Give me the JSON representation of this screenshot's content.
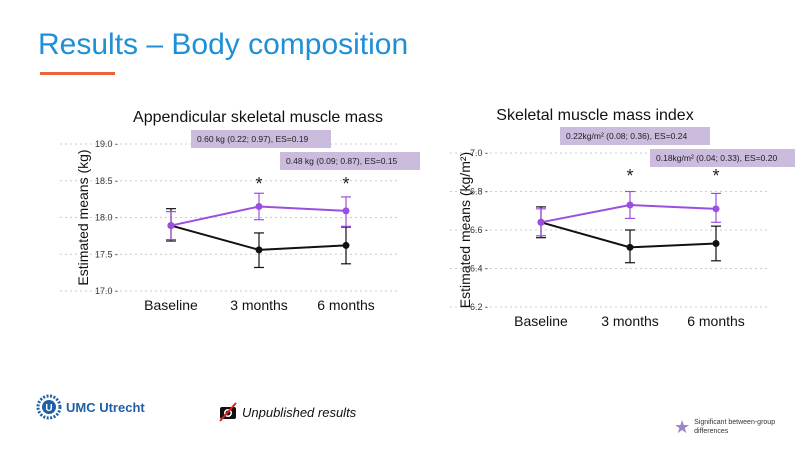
{
  "slide": {
    "title": "Results – Body composition",
    "accent": "#e8643a",
    "title_color": "#1f8fd6"
  },
  "footer": {
    "logo_text": "UMC Utrecht",
    "unpublished": "Unpublished results",
    "legend_text": "Significant between-group differences",
    "legend_icon": "star-icon"
  },
  "colors": {
    "intervention": "#9b4fe0",
    "control": "#111111",
    "box": "#cbbbdd"
  },
  "chart_data": [
    {
      "type": "line",
      "title": "Appendicular skeletal muscle mass",
      "ylabel": "Estimated means (kg)",
      "xlabel": "",
      "categories": [
        "Baseline",
        "3 months",
        "6 months"
      ],
      "ylim": [
        17.0,
        19.0
      ],
      "yticks": [
        "17.0",
        "17.5",
        "18.0",
        "18.5",
        "19.0"
      ],
      "grid": true,
      "series": [
        {
          "color": "#9b4fe0",
          "values": [
            17.89,
            18.15,
            18.09
          ],
          "lower": [
            17.7,
            17.97,
            17.88
          ],
          "upper": [
            18.08,
            18.33,
            18.28
          ]
        },
        {
          "color": "#111111",
          "values": [
            17.89,
            17.56,
            17.62
          ],
          "lower": [
            17.68,
            17.32,
            17.37
          ],
          "upper": [
            18.12,
            17.79,
            17.87
          ]
        }
      ],
      "significant": [
        "3 months",
        "6 months"
      ],
      "annotations": [
        "0.60 kg (0.22; 0.97), ES=0.19",
        "0.48 kg (0.09; 0.87), ES=0.15"
      ]
    },
    {
      "type": "line",
      "title": "Skeletal muscle mass index",
      "ylabel": "Estimated means (kg/m²)",
      "xlabel": "",
      "categories": [
        "Baseline",
        "3 months",
        "6 months"
      ],
      "ylim": [
        6.2,
        7.0
      ],
      "yticks": [
        "6.2",
        "6.4",
        "6.6",
        "6.8",
        "7.0"
      ],
      "grid": true,
      "series": [
        {
          "color": "#9b4fe0",
          "values": [
            6.64,
            6.73,
            6.71
          ],
          "lower": [
            6.57,
            6.66,
            6.64
          ],
          "upper": [
            6.71,
            6.8,
            6.79
          ]
        },
        {
          "color": "#111111",
          "values": [
            6.64,
            6.51,
            6.53
          ],
          "lower": [
            6.56,
            6.43,
            6.44
          ],
          "upper": [
            6.72,
            6.6,
            6.62
          ]
        }
      ],
      "significant": [
        "3 months",
        "6 months"
      ],
      "annotations": [
        "0.22kg/m² (0.08; 0.36), ES=0.24",
        "0.18kg/m² (0.04; 0.33), ES=0.20"
      ]
    }
  ]
}
